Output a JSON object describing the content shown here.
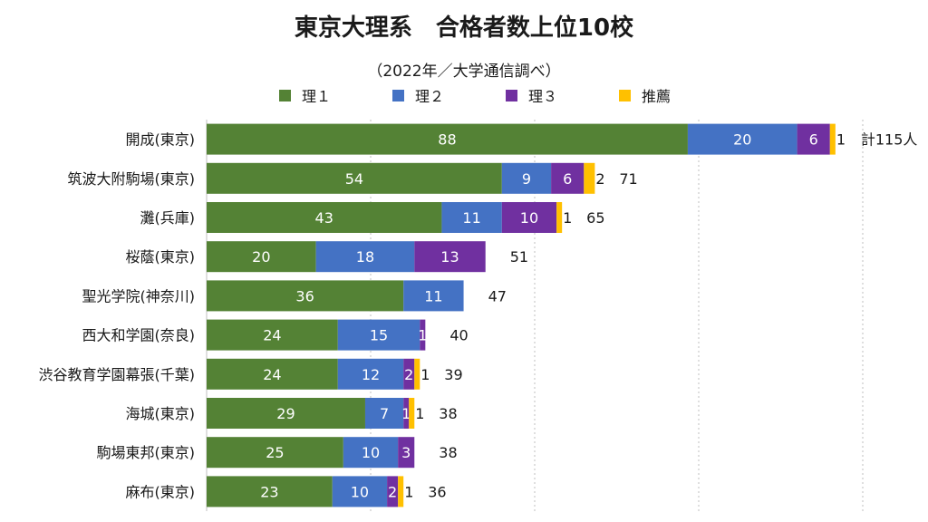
{
  "chart_data": {
    "type": "bar",
    "orientation": "horizontal",
    "stacked": true,
    "title": "東京大理系　合格者数上位10校",
    "subtitle": "（2022年／大学通信調べ）",
    "categories": [
      "開成(東京)",
      "筑波大附駒場(東京)",
      "灘(兵庫)",
      "桜蔭(東京)",
      "聖光学院(神奈川)",
      "西大和学園(奈良)",
      "渋谷教育学園幕張(千葉)",
      "海城(東京)",
      "駒場東邦(東京)",
      "麻布(東京)"
    ],
    "series": [
      {
        "name": "理１",
        "color": "#548235",
        "values": [
          88,
          54,
          43,
          20,
          36,
          24,
          24,
          29,
          25,
          23
        ]
      },
      {
        "name": "理２",
        "color": "#4472C4",
        "values": [
          20,
          9,
          11,
          18,
          11,
          15,
          12,
          7,
          10,
          10
        ]
      },
      {
        "name": "理３",
        "color": "#7030A0",
        "values": [
          6,
          6,
          10,
          13,
          0,
          1,
          2,
          1,
          3,
          2
        ]
      },
      {
        "name": "推薦",
        "color": "#FFC000",
        "values": [
          1,
          2,
          1,
          0,
          0,
          0,
          1,
          1,
          0,
          1
        ]
      }
    ],
    "totals": [
      "計115人",
      "71",
      "65",
      "51",
      "47",
      "40",
      "39",
      "38",
      "38",
      "36"
    ],
    "xlim": [
      0,
      120
    ],
    "legend_position": "top",
    "grid": "vertical dotted"
  }
}
